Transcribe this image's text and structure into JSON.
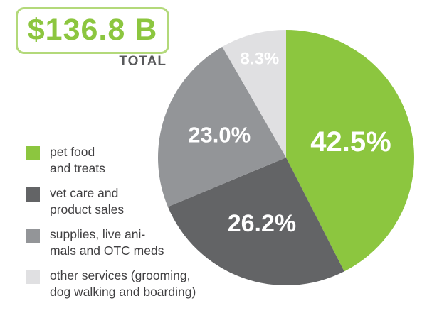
{
  "total": {
    "value": "$136.8 B",
    "label": "TOTAL"
  },
  "colors": {
    "accent": "#8cc63f",
    "frame": "#b3d97a",
    "text": "#414042"
  },
  "chart_data": {
    "type": "pie",
    "title": "",
    "slices": [
      {
        "label": "pet food\nand treats",
        "value": 42.5,
        "display": "42.5%",
        "color": "#8cc63f"
      },
      {
        "label": "vet care and\nproduct sales",
        "value": 26.2,
        "display": "26.2%",
        "color": "#636466"
      },
      {
        "label": "supplies, live ani-\nmals and OTC meds",
        "value": 23.0,
        "display": "23.0%",
        "color": "#939598"
      },
      {
        "label": "other services (grooming,\ndog walking and boarding)",
        "value": 8.3,
        "display": "8.3%",
        "color": "#e0e0e2"
      }
    ],
    "legend": "left"
  }
}
